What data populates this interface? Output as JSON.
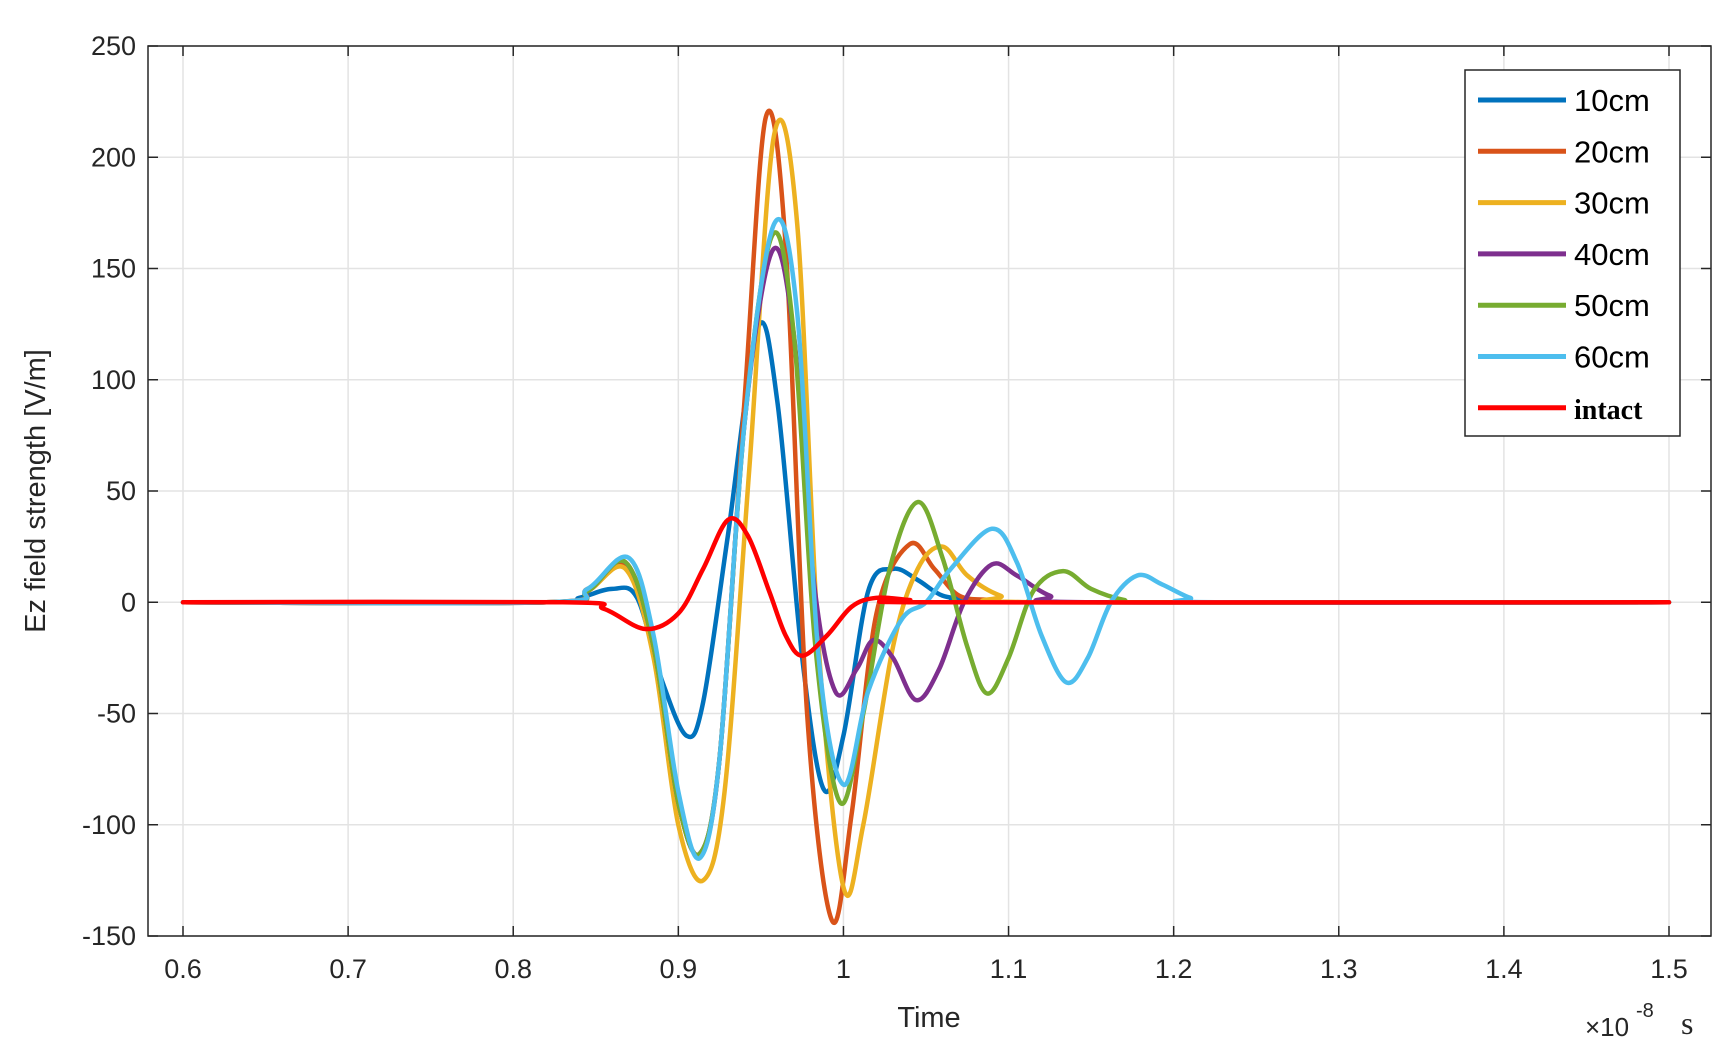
{
  "chart_data": {
    "type": "line",
    "xlabel": "Time",
    "ylabel": "Ez field strength [V/m]",
    "x_exponent": "×10",
    "x_exponent_power": "-8",
    "x_unit": "s",
    "xlim": [
      0.6,
      1.5
    ],
    "ylim": [
      -150,
      250
    ],
    "x_ticks": [
      "0.6",
      "0.7",
      "0.8",
      "0.9",
      "1",
      "1.1",
      "1.2",
      "1.3",
      "1.4",
      "1.5"
    ],
    "y_ticks": [
      "250",
      "200",
      "150",
      "100",
      "50",
      "0",
      "-50",
      "-100",
      "-150"
    ],
    "grid": true,
    "legend_position": "top-right",
    "series": [
      {
        "name": "10cm",
        "color": "#0072BD",
        "points": [
          [
            0.6,
            0
          ],
          [
            0.82,
            0
          ],
          [
            0.84,
            2
          ],
          [
            0.86,
            6
          ],
          [
            0.875,
            2
          ],
          [
            0.89,
            -35
          ],
          [
            0.905,
            -60
          ],
          [
            0.915,
            -45
          ],
          [
            0.93,
            30
          ],
          [
            0.948,
            123
          ],
          [
            0.96,
            90
          ],
          [
            0.975,
            -25
          ],
          [
            0.988,
            -84
          ],
          [
            1.0,
            -60
          ],
          [
            1.015,
            5
          ],
          [
            1.03,
            15
          ],
          [
            1.045,
            10
          ],
          [
            1.06,
            3
          ],
          [
            1.08,
            1
          ],
          [
            1.1,
            0
          ],
          [
            1.5,
            0
          ]
        ]
      },
      {
        "name": "20cm",
        "color": "#D95319",
        "points": [
          [
            0.6,
            0
          ],
          [
            0.82,
            0
          ],
          [
            0.845,
            6
          ],
          [
            0.868,
            16
          ],
          [
            0.885,
            -20
          ],
          [
            0.9,
            -90
          ],
          [
            0.913,
            -113
          ],
          [
            0.925,
            -70
          ],
          [
            0.94,
            90
          ],
          [
            0.953,
            218
          ],
          [
            0.965,
            160
          ],
          [
            0.978,
            -50
          ],
          [
            0.993,
            -143
          ],
          [
            1.005,
            -95
          ],
          [
            1.02,
            -5
          ],
          [
            1.04,
            26
          ],
          [
            1.055,
            15
          ],
          [
            1.07,
            3
          ],
          [
            1.09,
            1
          ],
          [
            1.12,
            0
          ],
          [
            1.5,
            0
          ]
        ]
      },
      {
        "name": "30cm",
        "color": "#EDB120",
        "points": [
          [
            0.6,
            0
          ],
          [
            0.82,
            0
          ],
          [
            0.845,
            5
          ],
          [
            0.868,
            15
          ],
          [
            0.885,
            -25
          ],
          [
            0.9,
            -100
          ],
          [
            0.915,
            -125
          ],
          [
            0.928,
            -85
          ],
          [
            0.943,
            60
          ],
          [
            0.958,
            210
          ],
          [
            0.972,
            170
          ],
          [
            0.985,
            -20
          ],
          [
            1.0,
            -128
          ],
          [
            1.012,
            -100
          ],
          [
            1.03,
            -20
          ],
          [
            1.045,
            15
          ],
          [
            1.06,
            25
          ],
          [
            1.075,
            12
          ],
          [
            1.095,
            3
          ],
          [
            1.12,
            0
          ],
          [
            1.5,
            0
          ]
        ]
      },
      {
        "name": "40cm",
        "color": "#7E2F8E",
        "points": [
          [
            0.6,
            0
          ],
          [
            0.82,
            0
          ],
          [
            0.845,
            5
          ],
          [
            0.868,
            18
          ],
          [
            0.885,
            -20
          ],
          [
            0.9,
            -90
          ],
          [
            0.913,
            -113
          ],
          [
            0.925,
            -70
          ],
          [
            0.94,
            80
          ],
          [
            0.957,
            158
          ],
          [
            0.97,
            120
          ],
          [
            0.982,
            10
          ],
          [
            0.995,
            -40
          ],
          [
            1.008,
            -30
          ],
          [
            1.018,
            -17
          ],
          [
            1.03,
            -25
          ],
          [
            1.044,
            -44
          ],
          [
            1.058,
            -30
          ],
          [
            1.073,
            0
          ],
          [
            1.09,
            17
          ],
          [
            1.105,
            12
          ],
          [
            1.125,
            3
          ],
          [
            1.15,
            0
          ],
          [
            1.5,
            0
          ]
        ]
      },
      {
        "name": "50cm",
        "color": "#77AC30",
        "points": [
          [
            0.6,
            0
          ],
          [
            0.82,
            0
          ],
          [
            0.845,
            5
          ],
          [
            0.868,
            18
          ],
          [
            0.885,
            -20
          ],
          [
            0.9,
            -90
          ],
          [
            0.913,
            -113
          ],
          [
            0.925,
            -70
          ],
          [
            0.94,
            80
          ],
          [
            0.957,
            165
          ],
          [
            0.97,
            120
          ],
          [
            0.983,
            -20
          ],
          [
            0.998,
            -90
          ],
          [
            1.012,
            -50
          ],
          [
            1.028,
            15
          ],
          [
            1.045,
            45
          ],
          [
            1.06,
            20
          ],
          [
            1.075,
            -20
          ],
          [
            1.087,
            -41
          ],
          [
            1.1,
            -25
          ],
          [
            1.115,
            5
          ],
          [
            1.133,
            14
          ],
          [
            1.15,
            6
          ],
          [
            1.17,
            1
          ],
          [
            1.19,
            0
          ],
          [
            1.5,
            0
          ]
        ]
      },
      {
        "name": "60cm",
        "color": "#4DBEEE",
        "points": [
          [
            0.6,
            0
          ],
          [
            0.82,
            0
          ],
          [
            0.845,
            6
          ],
          [
            0.87,
            20
          ],
          [
            0.885,
            -15
          ],
          [
            0.9,
            -85
          ],
          [
            0.913,
            -115
          ],
          [
            0.925,
            -70
          ],
          [
            0.94,
            80
          ],
          [
            0.958,
            170
          ],
          [
            0.972,
            130
          ],
          [
            0.985,
            -25
          ],
          [
            1.0,
            -82
          ],
          [
            1.015,
            -40
          ],
          [
            1.035,
            -8
          ],
          [
            1.05,
            0
          ],
          [
            1.065,
            15
          ],
          [
            1.09,
            33
          ],
          [
            1.105,
            18
          ],
          [
            1.12,
            -15
          ],
          [
            1.135,
            -36
          ],
          [
            1.148,
            -25
          ],
          [
            1.162,
            0
          ],
          [
            1.178,
            12
          ],
          [
            1.193,
            8
          ],
          [
            1.21,
            2
          ],
          [
            1.225,
            0
          ],
          [
            1.5,
            0
          ]
        ]
      },
      {
        "name": "intact",
        "color": "#FF0000",
        "points": [
          [
            0.6,
            0
          ],
          [
            0.83,
            0
          ],
          [
            0.855,
            -3
          ],
          [
            0.88,
            -12
          ],
          [
            0.9,
            -5
          ],
          [
            0.915,
            15
          ],
          [
            0.93,
            37
          ],
          [
            0.942,
            30
          ],
          [
            0.955,
            5
          ],
          [
            0.965,
            -15
          ],
          [
            0.975,
            -24
          ],
          [
            0.99,
            -15
          ],
          [
            1.005,
            -2
          ],
          [
            1.02,
            2
          ],
          [
            1.04,
            1
          ],
          [
            1.06,
            0
          ],
          [
            1.5,
            0
          ]
        ]
      }
    ]
  }
}
